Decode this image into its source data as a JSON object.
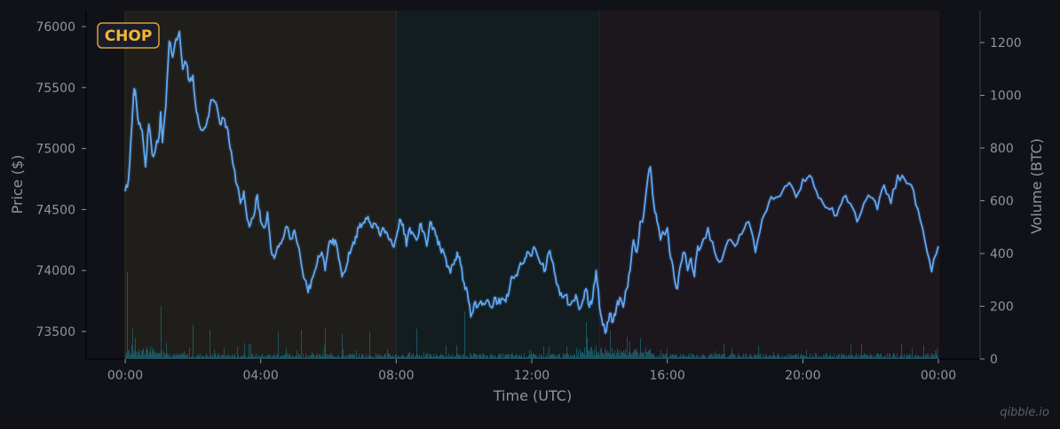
{
  "badge": {
    "label": "CHOP",
    "border_color": "#d9a233",
    "text_color": "#f2b632",
    "bg_color": "#1b1d2a"
  },
  "watermark": "qibble.io",
  "colors": {
    "background": "#111217",
    "price_line": "#5fa8f5",
    "volume_bar": "#1d5a66",
    "axis_text": "#8f93a3",
    "region_amber": "#201e1a",
    "region_teal": "#131d1f",
    "region_purple": "#1c161d"
  },
  "chart_data": {
    "type": "line",
    "title": "",
    "xlabel": "Time (UTC)",
    "ylabel": "Price ($)",
    "y2label": "Volume (BTC)",
    "x_ticks": [
      "00:00",
      "04:00",
      "08:00",
      "12:00",
      "16:00",
      "20:00",
      "00:00"
    ],
    "y_ticks": [
      73500,
      74000,
      74500,
      75000,
      75500,
      76000
    ],
    "y2_ticks": [
      0,
      200,
      400,
      600,
      800,
      1000,
      1200
    ],
    "ylim": [
      73280,
      76130
    ],
    "y2lim": [
      0,
      1325
    ],
    "regions": [
      {
        "label": "amber",
        "start_hour": 0,
        "end_hour": 8
      },
      {
        "label": "teal",
        "start_hour": 8,
        "end_hour": 14
      },
      {
        "label": "purple",
        "start_hour": 14,
        "end_hour": 24
      }
    ],
    "series": [
      {
        "name": "Price",
        "hours": [
          0,
          0.1,
          0.2,
          0.25,
          0.3,
          0.4,
          0.5,
          0.6,
          0.7,
          0.8,
          0.9,
          1.0,
          1.05,
          1.1,
          1.2,
          1.3,
          1.4,
          1.5,
          1.6,
          1.7,
          1.8,
          1.9,
          2.0,
          2.1,
          2.2,
          2.3,
          2.4,
          2.5,
          2.6,
          2.7,
          2.8,
          2.9,
          3.0,
          3.1,
          3.2,
          3.3,
          3.4,
          3.5,
          3.6,
          3.7,
          3.8,
          3.9,
          4.0,
          4.1,
          4.2,
          4.3,
          4.4,
          4.5,
          4.6,
          4.7,
          4.8,
          4.9,
          5.0,
          5.2,
          5.4,
          5.5,
          5.6,
          5.7,
          5.8,
          5.9,
          6.0,
          6.1,
          6.2,
          6.3,
          6.4,
          6.5,
          6.6,
          6.7,
          6.8,
          6.9,
          7.0,
          7.1,
          7.2,
          7.3,
          7.4,
          7.5,
          7.6,
          7.7,
          7.8,
          7.9,
          8.0,
          8.1,
          8.2,
          8.3,
          8.4,
          8.5,
          8.6,
          8.7,
          8.8,
          8.9,
          9.0,
          9.1,
          9.2,
          9.3,
          9.4,
          9.5,
          9.6,
          9.7,
          9.8,
          9.9,
          10.0,
          10.1,
          10.2,
          10.3,
          10.4,
          10.5,
          10.6,
          10.7,
          10.8,
          10.9,
          11.0,
          11.1,
          11.2,
          11.3,
          11.4,
          11.5,
          11.6,
          11.7,
          11.8,
          11.9,
          12.0,
          12.1,
          12.2,
          12.3,
          12.4,
          12.5,
          12.6,
          12.7,
          12.8,
          12.9,
          13.0,
          13.1,
          13.2,
          13.3,
          13.4,
          13.5,
          13.6,
          13.7,
          13.8,
          13.9,
          14.0,
          14.1,
          14.2,
          14.3,
          14.4,
          14.5,
          14.6,
          14.7,
          14.8,
          14.9,
          15.0,
          15.1,
          15.2,
          15.3,
          15.4,
          15.5,
          15.6,
          15.7,
          15.8,
          15.9,
          16.0,
          16.1,
          16.2,
          16.3,
          16.4,
          16.5,
          16.6,
          16.7,
          16.8,
          16.9,
          17.0,
          17.2,
          17.4,
          17.6,
          17.8,
          18.0,
          18.2,
          18.4,
          18.6,
          18.8,
          19.0,
          19.2,
          19.4,
          19.6,
          19.8,
          20.0,
          20.2,
          20.4,
          20.6,
          20.8,
          21.0,
          21.2,
          21.4,
          21.6,
          21.8,
          22.0,
          22.2,
          22.4,
          22.6,
          22.8,
          23.0,
          23.2,
          23.4,
          23.6,
          23.8,
          24.0
        ],
        "values": [
          74650,
          74750,
          75200,
          75450,
          75480,
          75200,
          75150,
          74850,
          75200,
          74950,
          75000,
          75100,
          75300,
          75050,
          75350,
          75880,
          75750,
          75900,
          75960,
          75650,
          75700,
          75550,
          75600,
          75300,
          75180,
          75150,
          75200,
          75350,
          75400,
          75350,
          75200,
          75250,
          75180,
          75000,
          74850,
          74700,
          74550,
          74650,
          74420,
          74380,
          74450,
          74620,
          74400,
          74350,
          74480,
          74180,
          74100,
          74200,
          74220,
          74300,
          74350,
          74260,
          74330,
          74050,
          73820,
          73920,
          74000,
          74120,
          74150,
          74000,
          74200,
          74220,
          74250,
          74100,
          73950,
          74000,
          74150,
          74200,
          74280,
          74350,
          74380,
          74430,
          74400,
          74350,
          74380,
          74300,
          74350,
          74320,
          74250,
          74200,
          74270,
          74420,
          74380,
          74200,
          74350,
          74300,
          74250,
          74380,
          74320,
          74200,
          74400,
          74350,
          74280,
          74180,
          74150,
          74030,
          73980,
          74050,
          74150,
          74050,
          73900,
          73820,
          73620,
          73730,
          73700,
          73750,
          73720,
          73760,
          73700,
          73780,
          73730,
          73770,
          73760,
          73790,
          73950,
          73950,
          74000,
          74050,
          74100,
          74150,
          74120,
          74180,
          74100,
          74050,
          74000,
          74150,
          74080,
          73950,
          73850,
          73780,
          73800,
          73720,
          73750,
          73800,
          73680,
          73750,
          73850,
          73700,
          73780,
          74000,
          73700,
          73550,
          73500,
          73650,
          73580,
          73700,
          73780,
          73700,
          73850,
          74000,
          74250,
          74150,
          74400,
          74450,
          74700,
          74850,
          74550,
          74400,
          74250,
          74300,
          74350,
          74100,
          73950,
          73850,
          74050,
          74150,
          74000,
          74100,
          73950,
          74200,
          74200,
          74350,
          74150,
          74080,
          74250,
          74200,
          74300,
          74400,
          74150,
          74420,
          74560,
          74600,
          74650,
          74720,
          74600,
          74750,
          74780,
          74650,
          74550,
          74500,
          74450,
          74600,
          74550,
          74400,
          74550,
          74600,
          74500,
          74700,
          74550,
          74780,
          74750,
          74700,
          74500,
          74250,
          73990,
          74200,
          74300,
          74380,
          74260,
          74100,
          73950
        ]
      },
      {
        "name": "Volume",
        "note": "thin bars, mostly 5-40 BTC with spikes",
        "spikes": [
          {
            "hour": 0.05,
            "value": 330
          },
          {
            "hour": 0.2,
            "value": 115
          },
          {
            "hour": 0.3,
            "value": 80
          },
          {
            "hour": 1.05,
            "value": 200
          },
          {
            "hour": 1.2,
            "value": 60
          },
          {
            "hour": 2.0,
            "value": 130
          },
          {
            "hour": 2.5,
            "value": 110
          },
          {
            "hour": 3.5,
            "value": 60
          },
          {
            "hour": 4.5,
            "value": 100
          },
          {
            "hour": 5.2,
            "value": 110
          },
          {
            "hour": 5.9,
            "value": 120
          },
          {
            "hour": 6.4,
            "value": 95
          },
          {
            "hour": 7.2,
            "value": 100
          },
          {
            "hour": 8.6,
            "value": 115
          },
          {
            "hour": 10.0,
            "value": 180
          },
          {
            "hour": 13.6,
            "value": 140
          },
          {
            "hour": 14.3,
            "value": 110
          },
          {
            "hour": 14.8,
            "value": 85
          },
          {
            "hour": 15.2,
            "value": 80
          },
          {
            "hour": 21.4,
            "value": 55
          },
          {
            "hour": 23.95,
            "value": 40
          }
        ]
      }
    ]
  }
}
